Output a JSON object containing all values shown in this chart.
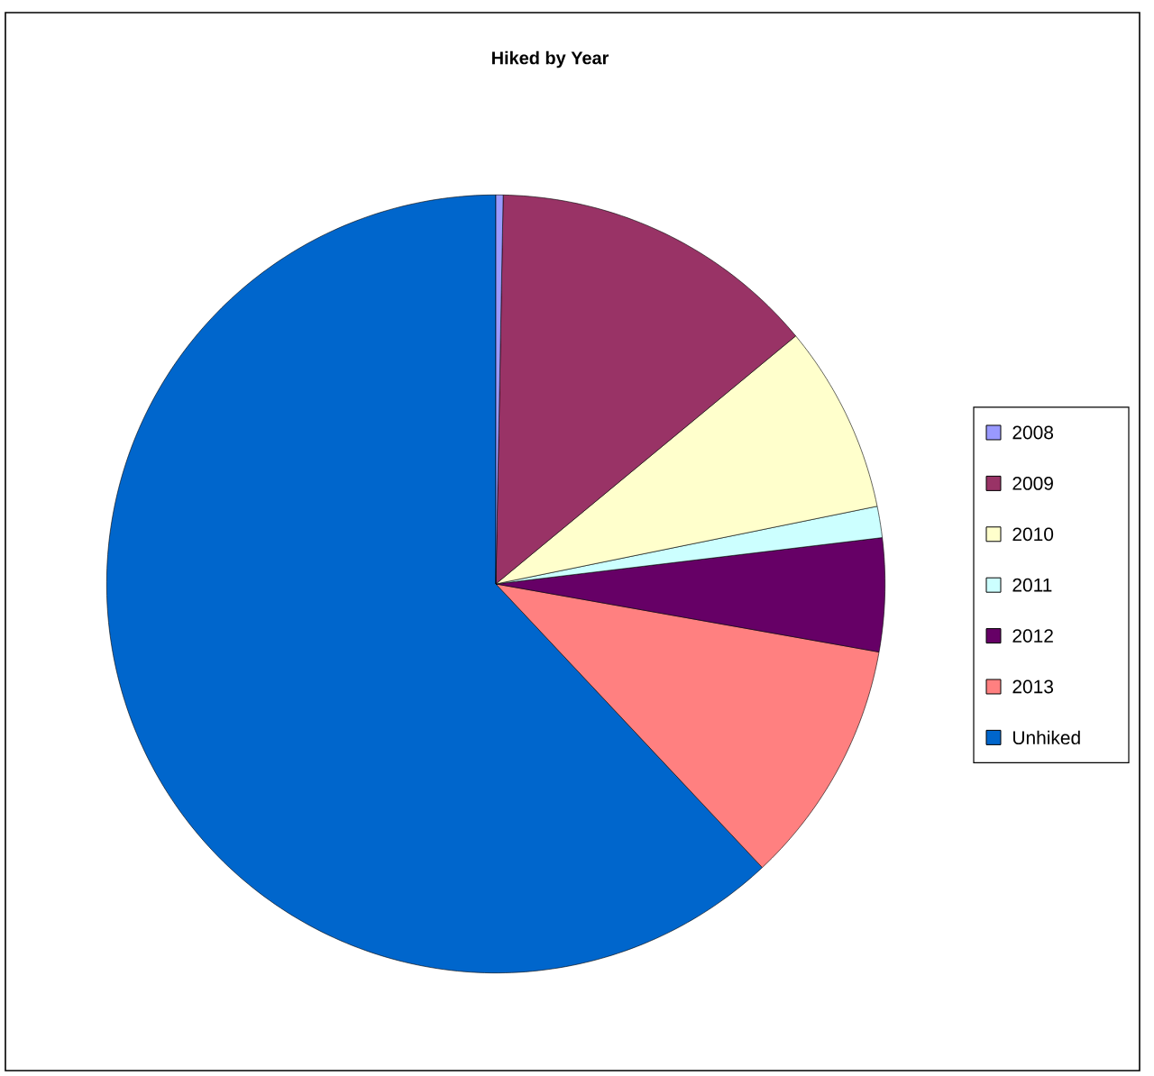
{
  "chart_data": {
    "type": "pie",
    "title": "Hiked by Year",
    "categories": [
      "2008",
      "2009",
      "2010",
      "2011",
      "2012",
      "2013",
      "Unhiked"
    ],
    "values": [
      0.3,
      13.7,
      7.8,
      1.3,
      4.7,
      10.2,
      62.0
    ],
    "colors": [
      "#9999ff",
      "#993366",
      "#ffffcc",
      "#ccffff",
      "#660066",
      "#ff8080",
      "#0066cc"
    ],
    "legend": "right"
  }
}
